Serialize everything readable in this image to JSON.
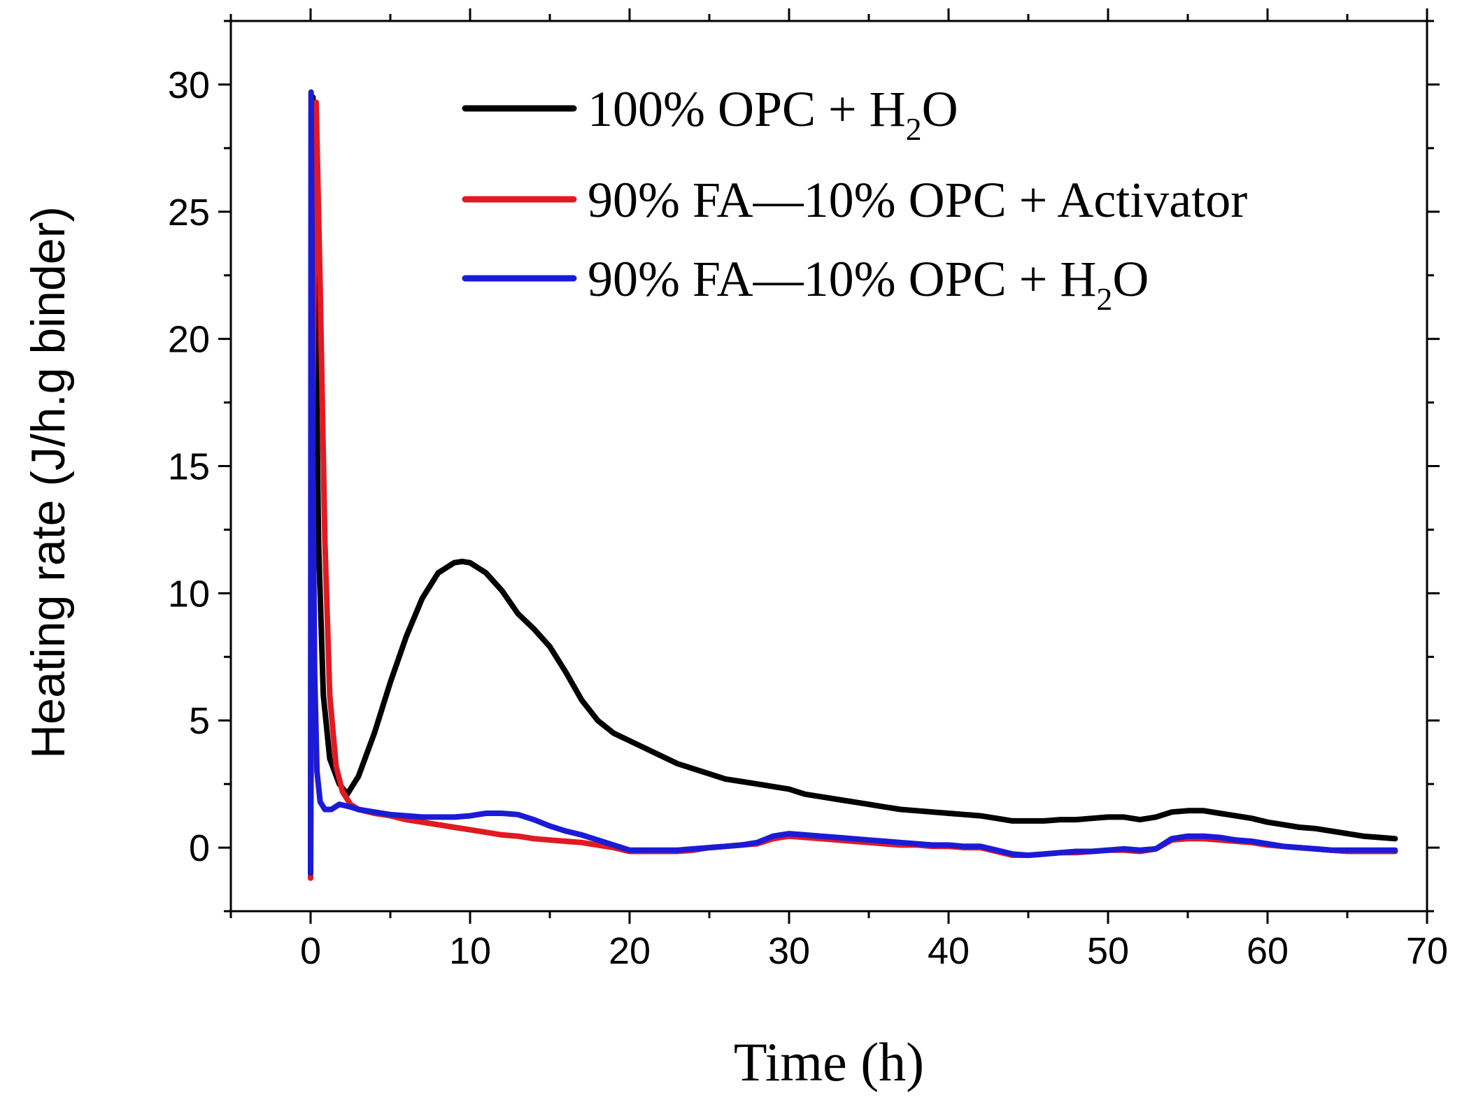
{
  "chart_data": {
    "type": "line",
    "title": "",
    "xlabel": "Time (h)",
    "ylabel": "Heating rate (J/h.g binder)",
    "xlim": [
      -5,
      70
    ],
    "ylim": [
      -2.5,
      32.5
    ],
    "xticks": [
      0,
      10,
      20,
      30,
      40,
      50,
      60,
      70
    ],
    "yticks": [
      0,
      5,
      10,
      15,
      20,
      25,
      30
    ],
    "xtick_labels": [
      "0",
      "10",
      "20",
      "30",
      "40",
      "50",
      "60",
      "70"
    ],
    "ytick_labels": [
      "0",
      "5",
      "10",
      "15",
      "20",
      "25",
      "30"
    ],
    "legend_position": "top-center",
    "series": [
      {
        "name": "100% OPC + H2O",
        "legend": {
          "prefix": "100% OPC + H",
          "sub": "2",
          "suffix": "O"
        },
        "color": "#000000",
        "x": [
          0,
          0.05,
          0.15,
          0.3,
          0.5,
          0.8,
          1.2,
          1.8,
          2.3,
          3,
          4,
          5,
          6,
          7,
          8,
          9,
          9.5,
          10,
          11,
          12,
          13,
          14,
          15,
          16,
          17,
          18,
          19,
          20,
          21,
          22,
          23,
          24,
          25,
          26,
          27,
          28,
          29,
          30,
          31,
          32,
          33,
          34,
          35,
          36,
          37,
          38,
          39,
          40,
          41,
          42,
          43,
          44,
          45,
          46,
          47,
          48,
          49,
          50,
          51,
          52,
          53,
          54,
          55,
          56,
          57,
          58,
          59,
          60,
          61,
          62,
          63,
          64,
          65,
          66,
          67,
          68
        ],
        "y": [
          -1,
          20,
          29.5,
          22,
          12,
          6,
          3.5,
          2.5,
          2.1,
          2.8,
          4.5,
          6.5,
          8.3,
          9.8,
          10.8,
          11.2,
          11.25,
          11.2,
          10.8,
          10.1,
          9.2,
          8.6,
          7.9,
          6.9,
          5.8,
          5.0,
          4.5,
          4.2,
          3.9,
          3.6,
          3.3,
          3.1,
          2.9,
          2.7,
          2.6,
          2.5,
          2.4,
          2.3,
          2.1,
          2.0,
          1.9,
          1.8,
          1.7,
          1.6,
          1.5,
          1.45,
          1.4,
          1.35,
          1.3,
          1.25,
          1.15,
          1.05,
          1.05,
          1.05,
          1.1,
          1.1,
          1.15,
          1.2,
          1.2,
          1.1,
          1.2,
          1.4,
          1.45,
          1.45,
          1.35,
          1.25,
          1.15,
          1.0,
          0.9,
          0.8,
          0.75,
          0.65,
          0.55,
          0.45,
          0.4,
          0.35
        ]
      },
      {
        "name": "90% FA—10% OPC + Activator",
        "legend": {
          "prefix": "90% FA—10% OPC + Activator",
          "sub": "",
          "suffix": ""
        },
        "color": "#e11a22",
        "x": [
          0,
          0.15,
          0.35,
          0.6,
          0.9,
          1.2,
          1.6,
          2,
          2.5,
          3,
          4,
          5,
          6,
          7,
          8,
          9,
          10,
          11,
          12,
          13,
          14,
          15,
          16,
          17,
          18,
          19,
          20,
          21,
          22,
          23,
          24,
          25,
          26,
          27,
          28,
          29,
          30,
          31,
          32,
          33,
          34,
          35,
          36,
          37,
          38,
          39,
          40,
          41,
          42,
          43,
          44,
          45,
          46,
          47,
          48,
          49,
          50,
          51,
          52,
          53,
          54,
          55,
          56,
          57,
          58,
          59,
          60,
          61,
          62,
          63,
          64,
          65,
          66,
          67,
          68
        ],
        "y": [
          -1.2,
          18,
          29.3,
          22,
          12,
          6,
          3.2,
          2.2,
          1.7,
          1.5,
          1.35,
          1.25,
          1.1,
          1.0,
          0.9,
          0.8,
          0.7,
          0.6,
          0.5,
          0.45,
          0.35,
          0.3,
          0.25,
          0.2,
          0.1,
          0.0,
          -0.15,
          -0.15,
          -0.15,
          -0.15,
          -0.1,
          0.0,
          0.05,
          0.1,
          0.15,
          0.35,
          0.45,
          0.4,
          0.35,
          0.3,
          0.25,
          0.2,
          0.15,
          0.1,
          0.1,
          0.05,
          0.05,
          0.0,
          0.0,
          -0.15,
          -0.3,
          -0.3,
          -0.25,
          -0.2,
          -0.2,
          -0.15,
          -0.1,
          -0.1,
          -0.15,
          -0.05,
          0.3,
          0.35,
          0.35,
          0.3,
          0.25,
          0.2,
          0.1,
          0.05,
          0.0,
          -0.05,
          -0.1,
          -0.15,
          -0.15,
          -0.15,
          -0.15
        ]
      },
      {
        "name": "90% FA—10% OPC + H2O",
        "legend": {
          "prefix": "90% FA—10% OPC + H",
          "sub": "2",
          "suffix": "O"
        },
        "color": "#1b1bd6",
        "x": [
          0,
          0.03,
          0.08,
          0.15,
          0.25,
          0.4,
          0.6,
          0.9,
          1.3,
          1.8,
          2.5,
          3,
          4,
          5,
          6,
          7,
          8,
          9,
          10,
          11,
          12,
          13,
          14,
          15,
          16,
          17,
          18,
          19,
          20,
          21,
          22,
          23,
          24,
          25,
          26,
          27,
          28,
          29,
          30,
          31,
          32,
          33,
          34,
          35,
          36,
          37,
          38,
          39,
          40,
          41,
          42,
          43,
          44,
          45,
          46,
          47,
          48,
          49,
          50,
          51,
          52,
          53,
          54,
          55,
          56,
          57,
          58,
          59,
          60,
          61,
          62,
          63,
          64,
          65,
          66,
          67,
          68
        ],
        "y": [
          -1,
          29.7,
          25,
          15,
          7,
          3,
          1.8,
          1.5,
          1.5,
          1.7,
          1.6,
          1.5,
          1.4,
          1.3,
          1.25,
          1.2,
          1.2,
          1.2,
          1.25,
          1.35,
          1.35,
          1.3,
          1.1,
          0.85,
          0.65,
          0.5,
          0.3,
          0.1,
          -0.1,
          -0.1,
          -0.1,
          -0.1,
          -0.05,
          0.0,
          0.05,
          0.1,
          0.2,
          0.45,
          0.55,
          0.5,
          0.45,
          0.4,
          0.35,
          0.3,
          0.25,
          0.2,
          0.15,
          0.1,
          0.1,
          0.05,
          0.05,
          -0.1,
          -0.25,
          -0.3,
          -0.25,
          -0.2,
          -0.15,
          -0.15,
          -0.1,
          -0.05,
          -0.1,
          -0.05,
          0.35,
          0.45,
          0.45,
          0.4,
          0.3,
          0.25,
          0.15,
          0.05,
          0.0,
          -0.05,
          -0.1,
          -0.1,
          -0.1,
          -0.1,
          -0.1
        ]
      }
    ]
  }
}
